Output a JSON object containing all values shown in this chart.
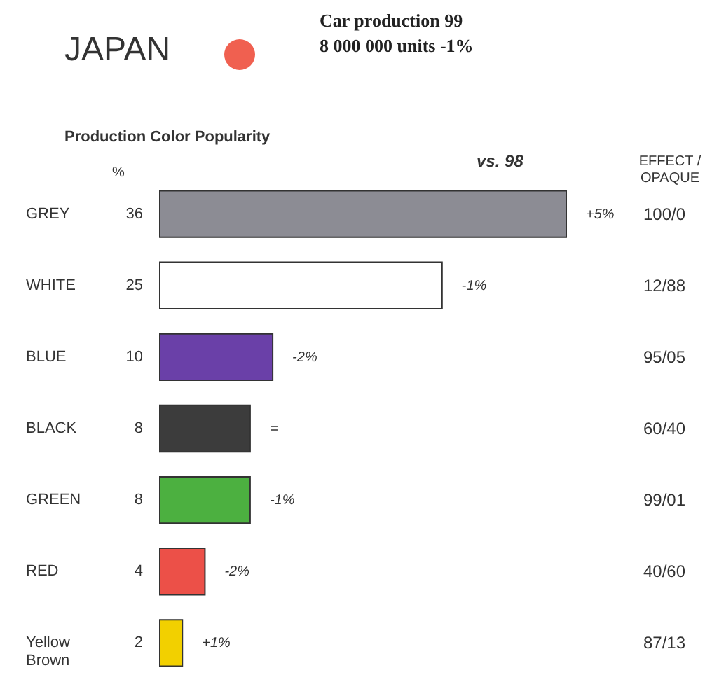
{
  "chart_data": {
    "type": "bar",
    "orientation": "horizontal",
    "data_labels": true,
    "title": "JAPAN",
    "subtitle": "Car production 99\n8 000 000 units -1%",
    "categories": [
      "GREY",
      "WHITE",
      "BLUE",
      "BLACK",
      "GREEN",
      "RED",
      "Yellow Brown"
    ],
    "values": [
      36,
      25,
      10,
      8,
      8,
      4,
      2
    ],
    "colors": [
      "#8c8c94",
      "#ffffff",
      "#6a40a8",
      "#3c3c3c",
      "#4cb040",
      "#ec5048",
      "#f2d000"
    ],
    "annotations": [
      "Production Color Popularity",
      "%",
      "vs. 98",
      "EFFECT / OPAQUE",
      {
        "text": "+5%",
        "x": 36,
        "y": "GREY"
      },
      {
        "text": "-1%",
        "x": 25,
        "y": "WHITE"
      },
      {
        "text": "-2%",
        "x": 10,
        "y": "BLUE"
      },
      {
        "text": "=",
        "x": 8,
        "y": "BLACK"
      },
      {
        "text": "-1%",
        "x": 8,
        "y": "GREEN"
      },
      {
        "text": "-2%",
        "x": 4,
        "y": "RED"
      },
      {
        "text": "+1%",
        "x": 2,
        "y": "Yellow Brown"
      },
      "100/0",
      "12/88",
      "95/05",
      "60/40",
      "99/01",
      "40/60",
      "87/13"
    ]
  }
}
